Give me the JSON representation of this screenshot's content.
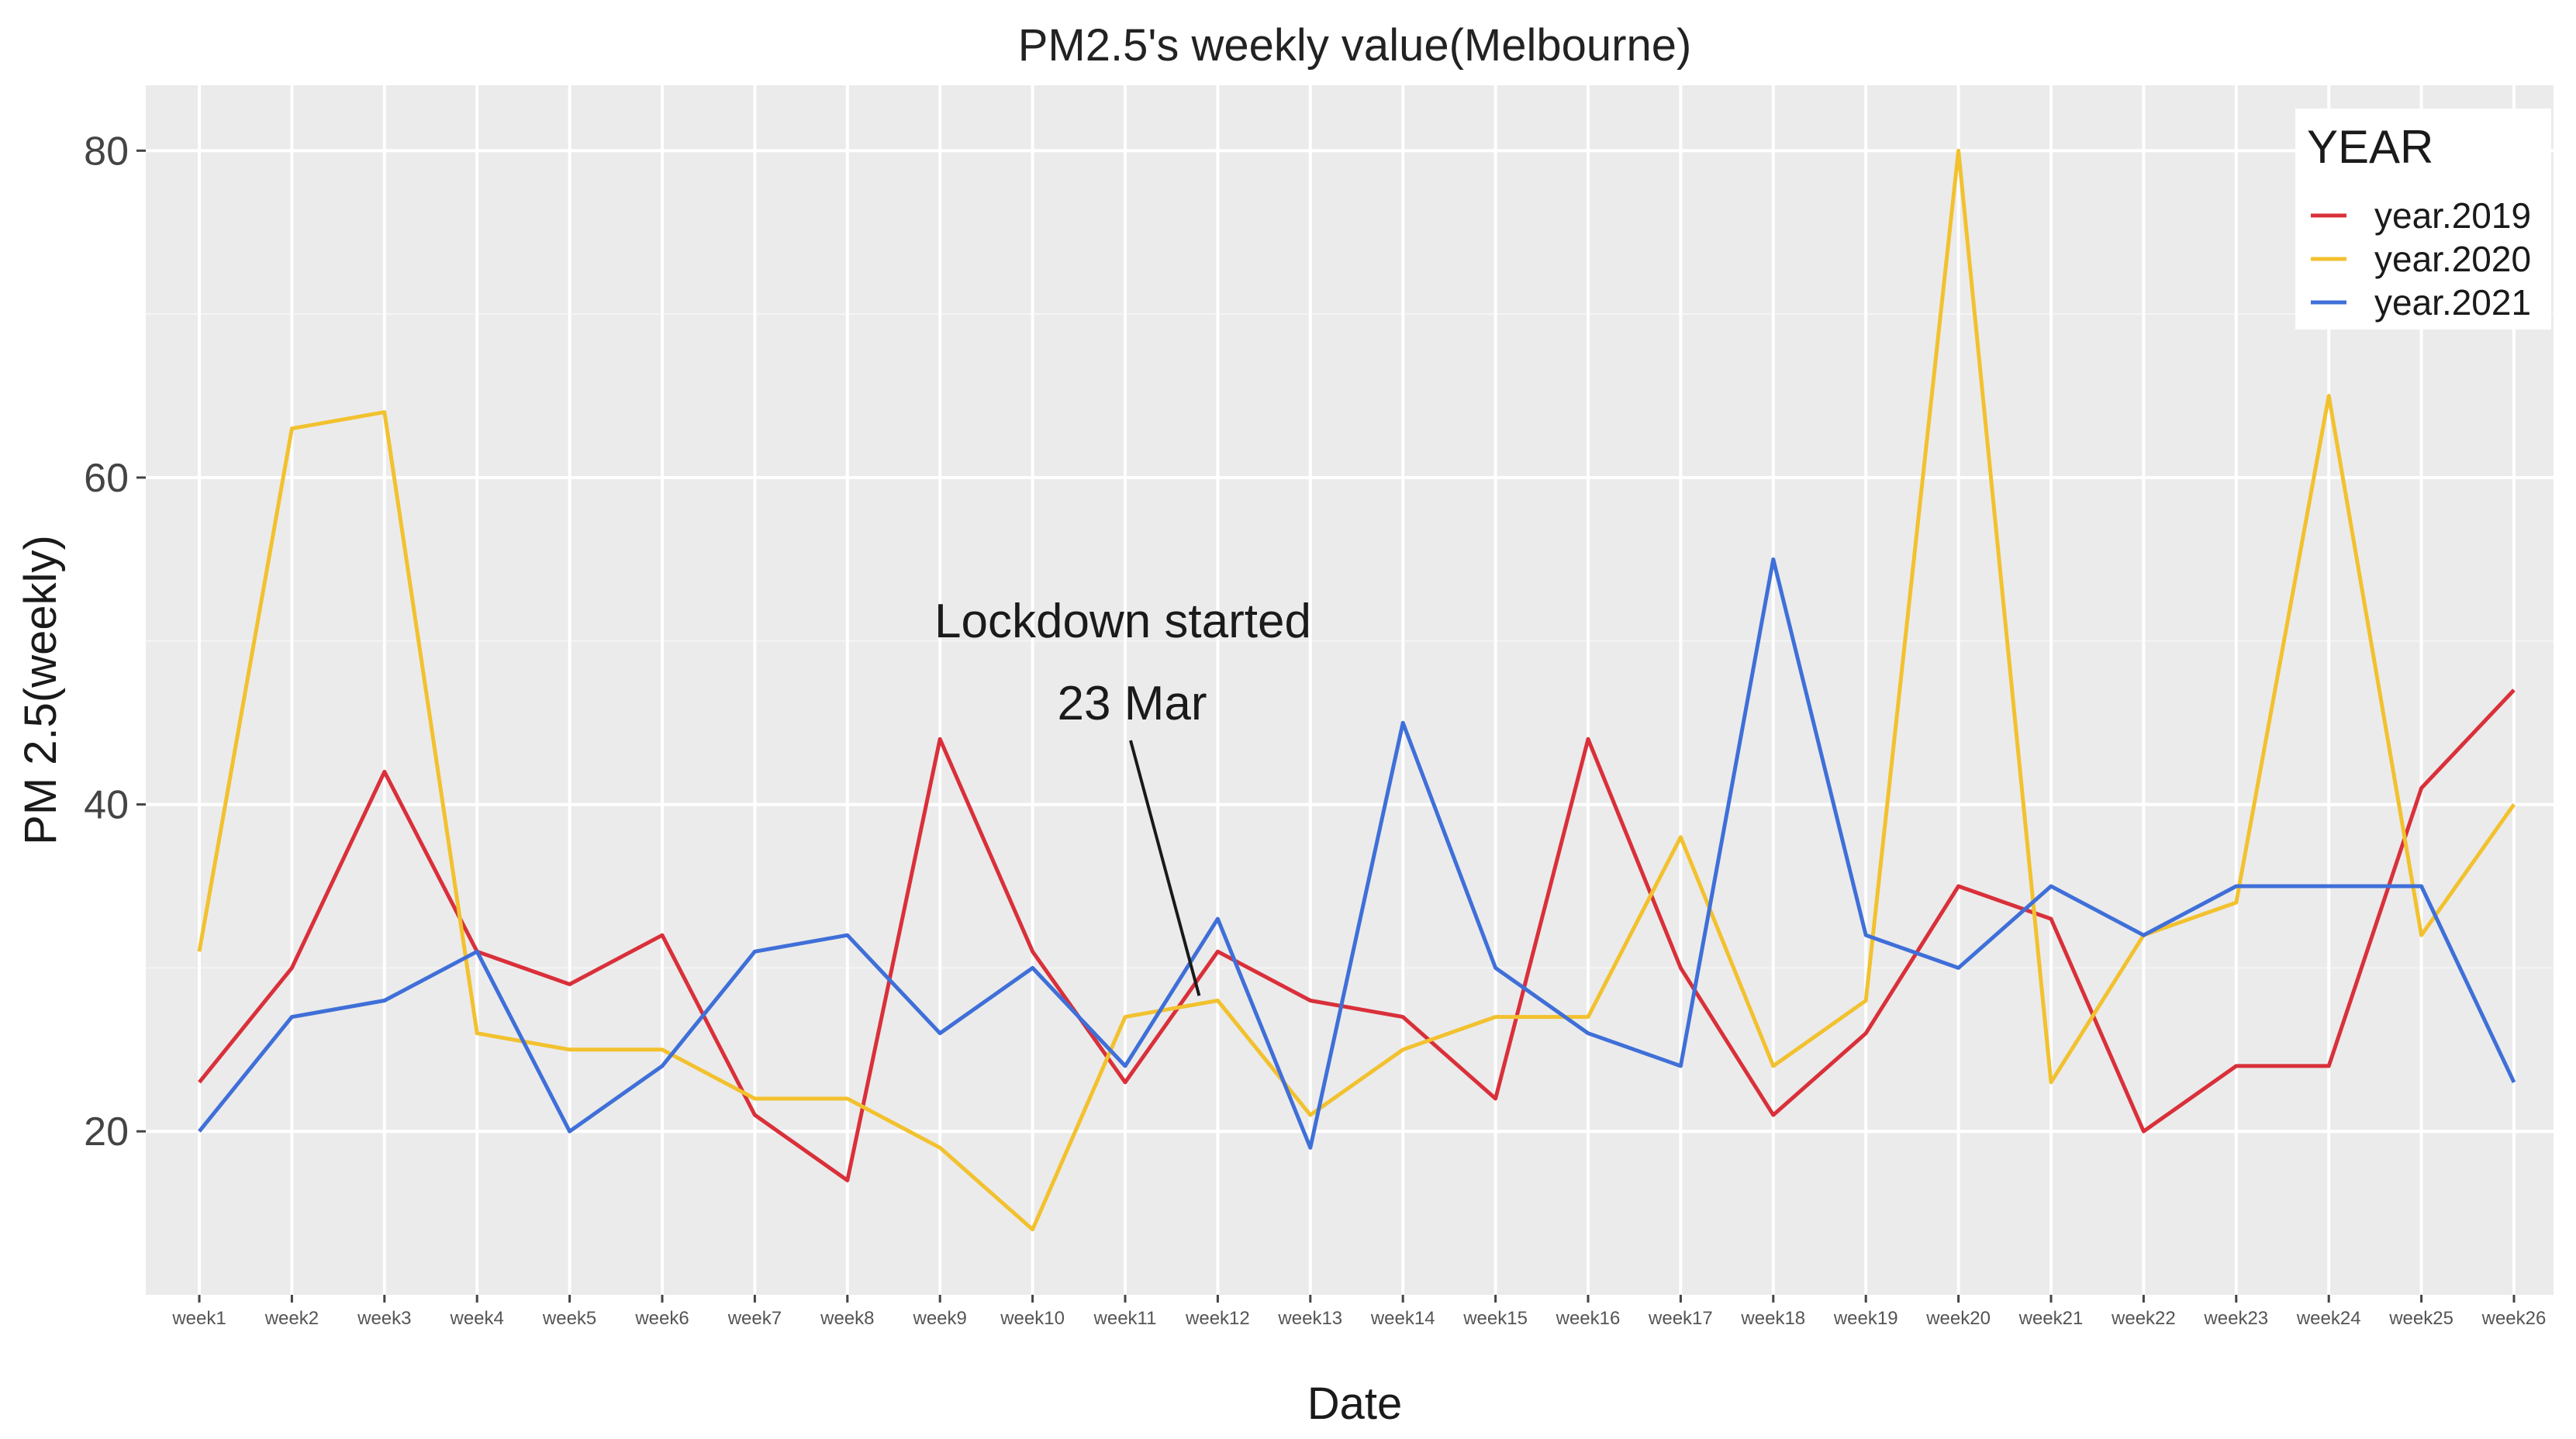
{
  "chart_data": {
    "type": "line",
    "title": "PM2.5's weekly value(Melbourne)",
    "xlabel": "Date",
    "ylabel": "PM 2.5(weekly)",
    "ylim": [
      10,
      84
    ],
    "yticks": [
      "20",
      "40",
      "60",
      "80"
    ],
    "ytick_values": [
      20,
      40,
      60,
      80
    ],
    "grid": true,
    "categories": [
      "week1",
      "week2",
      "week3",
      "week4",
      "week5",
      "week6",
      "week7",
      "week8",
      "week9",
      "week10",
      "week11",
      "week12",
      "week13",
      "week14",
      "week15",
      "week16",
      "week17",
      "week18",
      "week19",
      "week20",
      "week21",
      "week22",
      "week23",
      "week24",
      "week25",
      "week26"
    ],
    "series": [
      {
        "name": "year.2019",
        "color": "#d9303a",
        "values": [
          23,
          30,
          42,
          31,
          29,
          32,
          21,
          17,
          44,
          31,
          23,
          31,
          28,
          27,
          22,
          44,
          30,
          21,
          26,
          35,
          33,
          20,
          24,
          24,
          41,
          47
        ]
      },
      {
        "name": "year.2020",
        "color": "#f2c12e",
        "values": [
          31,
          63,
          64,
          26,
          25,
          25,
          22,
          22,
          19,
          14,
          27,
          28,
          21,
          25,
          27,
          27,
          38,
          24,
          28,
          80,
          23,
          32,
          34,
          65,
          32,
          40
        ]
      },
      {
        "name": "year.2021",
        "color": "#3f6fd8",
        "values": [
          20,
          27,
          28,
          31,
          20,
          24,
          31,
          32,
          26,
          30,
          24,
          33,
          19,
          45,
          30,
          26,
          24,
          55,
          32,
          30,
          35,
          32,
          35,
          35,
          35,
          23
        ]
      }
    ],
    "legend": {
      "title": "YEAR",
      "position": "top-right"
    },
    "annotation": {
      "line1": "Lockdown started",
      "line2": "23 Mar",
      "target_category": "week12",
      "target_value": 28.3
    }
  }
}
